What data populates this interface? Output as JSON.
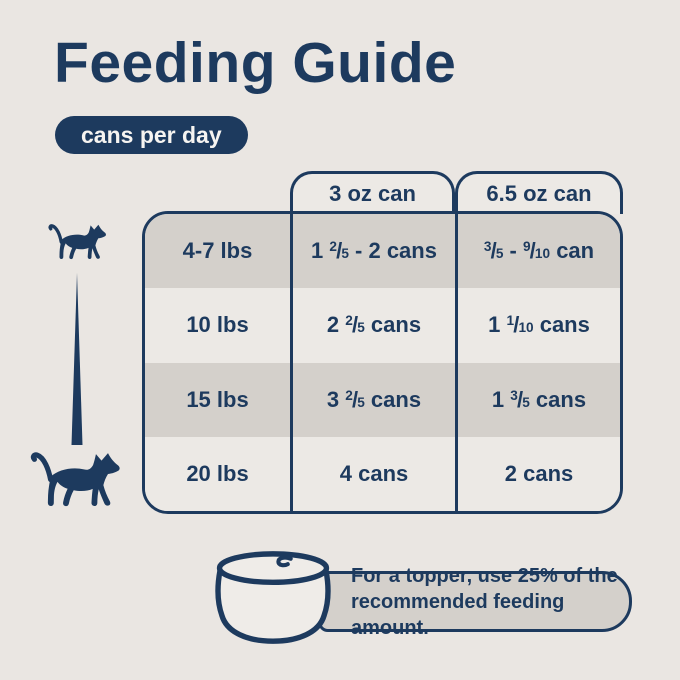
{
  "chart_data": {
    "type": "table",
    "title": "Feeding Guide",
    "subtitle": "cans per day",
    "columns": [
      "",
      "3 oz can",
      "6.5 oz can"
    ],
    "row_header_unit": "body weight (lbs)",
    "rows": [
      [
        "4-7 lbs",
        "1 2/5 - 2 cans",
        "3/5 - 9/10 can"
      ],
      [
        "10 lbs",
        "2 2/5 cans",
        "1 1/10 cans"
      ],
      [
        "15 lbs",
        "3 2/5 cans",
        "1 3/5 cans"
      ],
      [
        "20 lbs",
        "4 cans",
        "2 cans"
      ]
    ],
    "layout": {
      "row_striping": [
        "dark",
        "light",
        "dark",
        "light"
      ],
      "grid": "column-dividers-only",
      "legend_position": "none"
    }
  },
  "note": {
    "line1": "For a topper, use 25% of the",
    "line2": "recommended feeding amount."
  },
  "icons": {
    "small_cat": "small-cat-silhouette",
    "large_cat": "large-cat-silhouette",
    "spike": "size-increase-spike",
    "can": "cat-food-can"
  },
  "colors": {
    "navy": "#1d3a5e",
    "background": "#eae6e2",
    "row_dark": "#d4d0cb",
    "row_light": "#ece9e5",
    "badge_text": "#f6f4f1"
  }
}
